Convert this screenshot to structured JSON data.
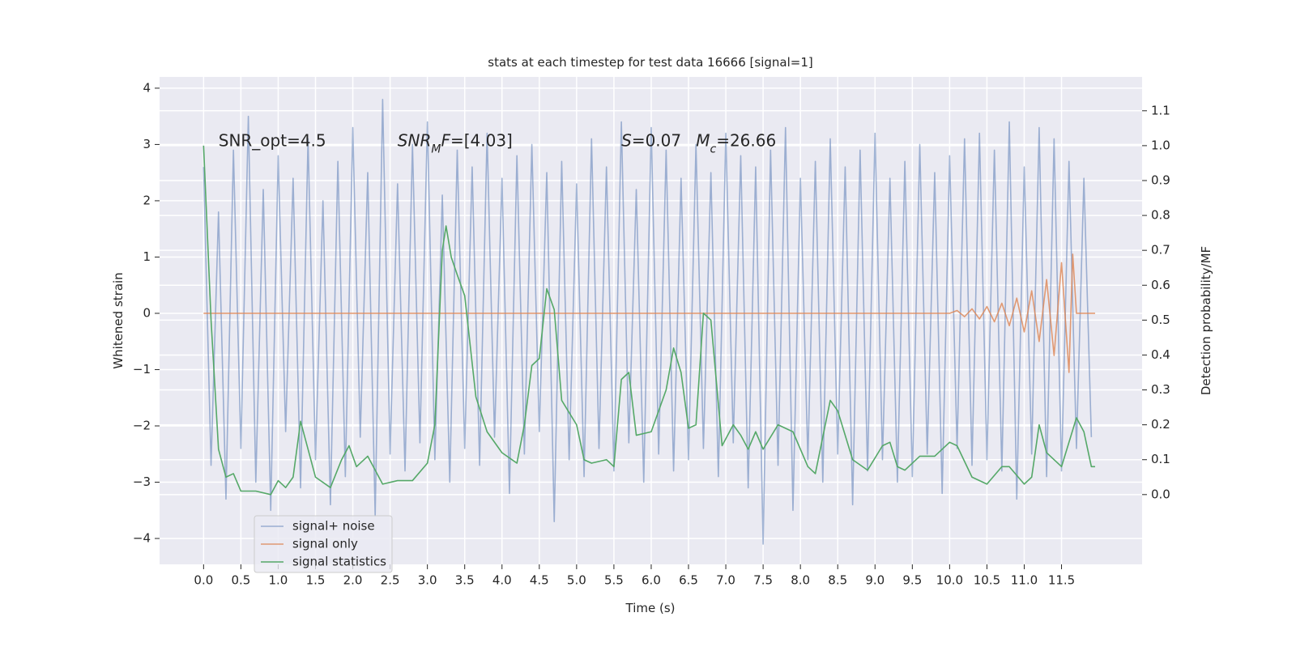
{
  "chart_data": {
    "type": "line",
    "title": "stats at each timestep for test data 16666 [signal=1]",
    "xlabel": "Time (s)",
    "ylabel": "Whitened strain",
    "y2label": "Detection probability/MF",
    "xlim": [
      -0.59,
      12.58
    ],
    "ylim": [
      -4.46,
      4.2
    ],
    "y2lim": [
      -0.2,
      1.197
    ],
    "xticks": [
      {
        "value": 0,
        "label": "0.0"
      },
      0.5,
      {
        "value": 1,
        "label": "1.0"
      },
      1.5,
      {
        "value": 2,
        "label": "2.0"
      },
      2.5,
      {
        "value": 3,
        "label": "3.0"
      },
      3.5,
      {
        "value": 4,
        "label": "4.0"
      },
      4.5,
      {
        "value": 5,
        "label": "5.0"
      },
      5.5,
      {
        "value": 6,
        "label": "6.0"
      },
      6.5,
      {
        "value": 7,
        "label": "7.0"
      },
      7.5,
      {
        "value": 8,
        "label": "8.0"
      },
      8.5,
      {
        "value": 9,
        "label": "9.0"
      },
      9.5,
      {
        "value": 10,
        "label": "10.0"
      },
      10.5,
      {
        "value": 11,
        "label": "11.0"
      },
      11.5
    ],
    "yticks": [
      {
        "value": -4,
        "label": "−4"
      },
      {
        "value": -3,
        "label": "−3"
      },
      {
        "value": -2,
        "label": "−2"
      },
      {
        "value": -1,
        "label": "−1"
      },
      0,
      1,
      2,
      3,
      4
    ],
    "y2ticks": [
      {
        "value": 0,
        "label": "0.0"
      },
      0.1,
      0.2,
      0.3,
      0.4,
      0.5,
      0.6,
      0.7,
      0.8,
      0.9,
      {
        "value": 1,
        "label": "1.0"
      },
      1.1
    ],
    "grid": true,
    "legend": "lower left",
    "series": [
      {
        "name": "signal+ noise",
        "color": "#4c72b0",
        "alpha": 0.5,
        "x": [
          0,
          0.1,
          0.2,
          0.3,
          0.4,
          0.5,
          0.6,
          0.7,
          0.8,
          0.9,
          1.0,
          1.1,
          1.2,
          1.3,
          1.4,
          1.5,
          1.6,
          1.7,
          1.8,
          1.9,
          2.0,
          2.1,
          2.2,
          2.3,
          2.4,
          2.5,
          2.6,
          2.7,
          2.8,
          2.9,
          3.0,
          3.1,
          3.2,
          3.3,
          3.4,
          3.5,
          3.6,
          3.7,
          3.8,
          3.9,
          4.0,
          4.1,
          4.2,
          4.3,
          4.4,
          4.5,
          4.6,
          4.7,
          4.8,
          4.9,
          5.0,
          5.1,
          5.2,
          5.3,
          5.4,
          5.5,
          5.6,
          5.7,
          5.8,
          5.9,
          6.0,
          6.1,
          6.2,
          6.3,
          6.4,
          6.5,
          6.6,
          6.7,
          6.8,
          6.9,
          7.0,
          7.1,
          7.2,
          7.3,
          7.4,
          7.5,
          7.6,
          7.7,
          7.8,
          7.9,
          8.0,
          8.1,
          8.2,
          8.3,
          8.4,
          8.5,
          8.6,
          8.7,
          8.8,
          8.9,
          9.0,
          9.1,
          9.2,
          9.3,
          9.4,
          9.5,
          9.6,
          9.7,
          9.8,
          9.9,
          10.0,
          10.1,
          10.2,
          10.3,
          10.4,
          10.5,
          10.6,
          10.7,
          10.8,
          10.9,
          11.0,
          11.1,
          11.2,
          11.3,
          11.4,
          11.5,
          11.6,
          11.7,
          11.8,
          11.9
        ],
        "values": [
          2.6,
          -2.7,
          1.8,
          -3.3,
          2.9,
          -2.4,
          3.5,
          -3.0,
          2.2,
          -3.5,
          2.8,
          -2.1,
          2.4,
          -3.1,
          3.1,
          -2.6,
          2.0,
          -3.4,
          2.7,
          -2.9,
          3.3,
          -2.2,
          2.5,
          -3.6,
          3.8,
          -2.5,
          2.3,
          -2.8,
          3.0,
          -2.3,
          3.4,
          -2.6,
          2.1,
          -3.0,
          2.9,
          -2.4,
          2.6,
          -2.7,
          3.2,
          -2.2,
          2.4,
          -3.2,
          2.8,
          -2.5,
          3.0,
          -2.1,
          2.5,
          -3.7,
          2.7,
          -2.6,
          2.3,
          -2.9,
          3.1,
          -2.4,
          2.6,
          -2.8,
          3.4,
          -2.3,
          2.2,
          -3.0,
          3.3,
          -2.5,
          2.9,
          -2.8,
          2.4,
          -2.6,
          3.0,
          -2.4,
          2.5,
          -2.9,
          3.2,
          -2.3,
          2.8,
          -3.1,
          2.6,
          -4.1,
          2.9,
          -2.7,
          3.3,
          -3.5,
          2.4,
          -2.6,
          2.7,
          -3.0,
          3.1,
          -2.5,
          2.6,
          -3.4,
          2.9,
          -2.8,
          3.2,
          -2.6,
          2.4,
          -3.0,
          2.7,
          -2.9,
          3.0,
          -2.5,
          2.5,
          -3.2,
          2.8,
          -2.4,
          3.1,
          -2.7,
          3.2,
          -2.6,
          2.9,
          -2.8,
          3.4,
          -3.3,
          2.6,
          -2.5,
          3.3,
          -2.9,
          3.1,
          -2.8,
          2.7,
          -2.4,
          2.4,
          -2.2
        ]
      },
      {
        "name": "signal only",
        "color": "#dd8452",
        "alpha": 0.8,
        "x": [
          0,
          10.0,
          10.1,
          10.2,
          10.3,
          10.4,
          10.5,
          10.6,
          10.7,
          10.8,
          10.9,
          11.0,
          11.1,
          11.2,
          11.3,
          11.4,
          11.5,
          11.6,
          11.65,
          11.7,
          11.95
        ],
        "values": [
          0,
          0,
          0.05,
          -0.06,
          0.08,
          -0.1,
          0.12,
          -0.15,
          0.18,
          -0.22,
          0.27,
          -0.33,
          0.4,
          -0.5,
          0.6,
          -0.75,
          0.9,
          -1.05,
          1.05,
          0,
          0
        ]
      },
      {
        "name": "signal statistics",
        "color": "#55a868",
        "alpha": 1,
        "axis": "y2",
        "x": [
          0,
          0.1,
          0.2,
          0.3,
          0.4,
          0.5,
          0.7,
          0.9,
          1.0,
          1.1,
          1.2,
          1.3,
          1.5,
          1.7,
          1.85,
          1.95,
          2.05,
          2.2,
          2.4,
          2.6,
          2.8,
          3.0,
          3.1,
          3.2,
          3.25,
          3.32,
          3.4,
          3.5,
          3.65,
          3.8,
          4.0,
          4.2,
          4.3,
          4.4,
          4.5,
          4.6,
          4.7,
          4.8,
          5.0,
          5.1,
          5.2,
          5.4,
          5.5,
          5.6,
          5.7,
          5.8,
          6.0,
          6.2,
          6.3,
          6.4,
          6.5,
          6.6,
          6.7,
          6.8,
          6.95,
          7.1,
          7.2,
          7.3,
          7.4,
          7.5,
          7.7,
          7.9,
          8.1,
          8.2,
          8.4,
          8.5,
          8.7,
          8.9,
          9.1,
          9.2,
          9.3,
          9.4,
          9.6,
          9.8,
          10.0,
          10.1,
          10.3,
          10.5,
          10.7,
          10.8,
          11.0,
          11.1,
          11.2,
          11.3,
          11.4,
          11.5,
          11.7,
          11.8,
          11.9,
          11.95
        ],
        "values": [
          1.0,
          0.5,
          0.13,
          0.05,
          0.06,
          0.01,
          0.01,
          0.0,
          0.04,
          0.02,
          0.05,
          0.21,
          0.05,
          0.02,
          0.1,
          0.14,
          0.08,
          0.11,
          0.03,
          0.04,
          0.04,
          0.09,
          0.2,
          0.7,
          0.77,
          0.68,
          0.63,
          0.57,
          0.28,
          0.18,
          0.12,
          0.09,
          0.2,
          0.37,
          0.39,
          0.59,
          0.53,
          0.27,
          0.2,
          0.1,
          0.09,
          0.1,
          0.08,
          0.33,
          0.35,
          0.17,
          0.18,
          0.3,
          0.42,
          0.35,
          0.19,
          0.2,
          0.52,
          0.5,
          0.14,
          0.2,
          0.17,
          0.13,
          0.18,
          0.13,
          0.2,
          0.18,
          0.08,
          0.06,
          0.27,
          0.24,
          0.1,
          0.07,
          0.14,
          0.15,
          0.08,
          0.07,
          0.11,
          0.11,
          0.15,
          0.14,
          0.05,
          0.03,
          0.08,
          0.08,
          0.03,
          0.05,
          0.2,
          0.12,
          0.1,
          0.08,
          0.22,
          0.18,
          0.08,
          0.08
        ]
      }
    ],
    "annotations": [
      {
        "x": 0.2,
        "y": 3.0,
        "parts": [
          "SNR_opt=4.5"
        ]
      },
      {
        "x": 2.6,
        "y": 3.0,
        "parts": [
          {
            "text": "SNR",
            "style": "italic"
          },
          {
            "text": "M",
            "style": "italic-sub"
          },
          {
            "text": "F",
            "style": "italic"
          },
          "=[4.03]"
        ]
      },
      {
        "x": 5.6,
        "y": 3.0,
        "parts": [
          {
            "text": "S",
            "style": "italic"
          },
          "=0.07"
        ]
      },
      {
        "x": 6.6,
        "y": 3.0,
        "parts": [
          {
            "text": "M",
            "style": "italic"
          },
          {
            "text": "c",
            "style": "italic-sub"
          },
          "=26.66"
        ]
      }
    ]
  }
}
